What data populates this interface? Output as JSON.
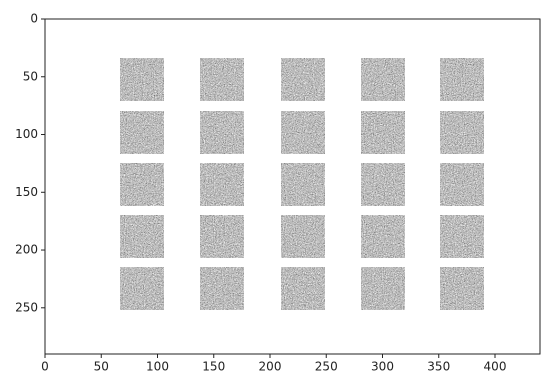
{
  "chart_data": {
    "type": "image",
    "xlim": [
      0,
      440
    ],
    "xticks": [
      0,
      50,
      100,
      150,
      200,
      250,
      300,
      350,
      400
    ],
    "ylim": [
      290,
      0
    ],
    "yticks": [
      0,
      50,
      100,
      150,
      200,
      250
    ],
    "grid": false
  }
}
